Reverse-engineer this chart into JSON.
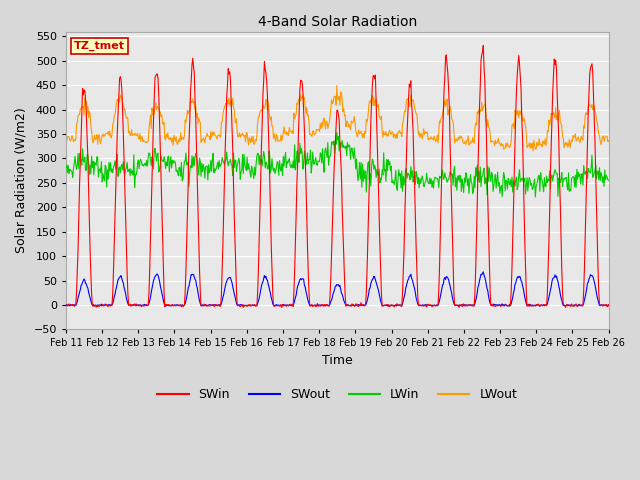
{
  "title": "4-Band Solar Radiation",
  "xlabel": "Time",
  "ylabel": "Solar Radiation (W/m2)",
  "ylim": [
    -50,
    560
  ],
  "yticks": [
    -50,
    0,
    50,
    100,
    150,
    200,
    250,
    300,
    350,
    400,
    450,
    500,
    550
  ],
  "colors": {
    "SWin": "#ff0000",
    "SWout": "#0000ff",
    "LWin": "#00cc00",
    "LWout": "#ff9900"
  },
  "annotation_text": "TZ_tmet",
  "annotation_box_color": "#ffffc0",
  "annotation_border_color": "#cc0000",
  "background_color": "#d8d8d8",
  "plot_bg_color": "#e8e8e8",
  "grid_color": "#ffffff",
  "n_days": 15,
  "start_day": 11,
  "legend_entries": [
    "SWin",
    "SWout",
    "LWin",
    "LWout"
  ],
  "peak_heights_SWin": [
    445,
    462,
    490,
    490,
    480,
    490,
    460,
    395,
    475,
    455,
    510,
    525,
    505,
    505,
    500
  ],
  "peak_heights_SWout": [
    50,
    58,
    62,
    62,
    58,
    57,
    55,
    42,
    55,
    60,
    60,
    65,
    60,
    60,
    62
  ],
  "lwin_day_means": [
    285,
    275,
    290,
    280,
    285,
    285,
    295,
    310,
    290,
    255,
    255,
    255,
    250,
    255,
    265
  ],
  "lwout_day_means": [
    350,
    360,
    350,
    350,
    358,
    350,
    365,
    380,
    360,
    360,
    348,
    345,
    335,
    340,
    350
  ]
}
